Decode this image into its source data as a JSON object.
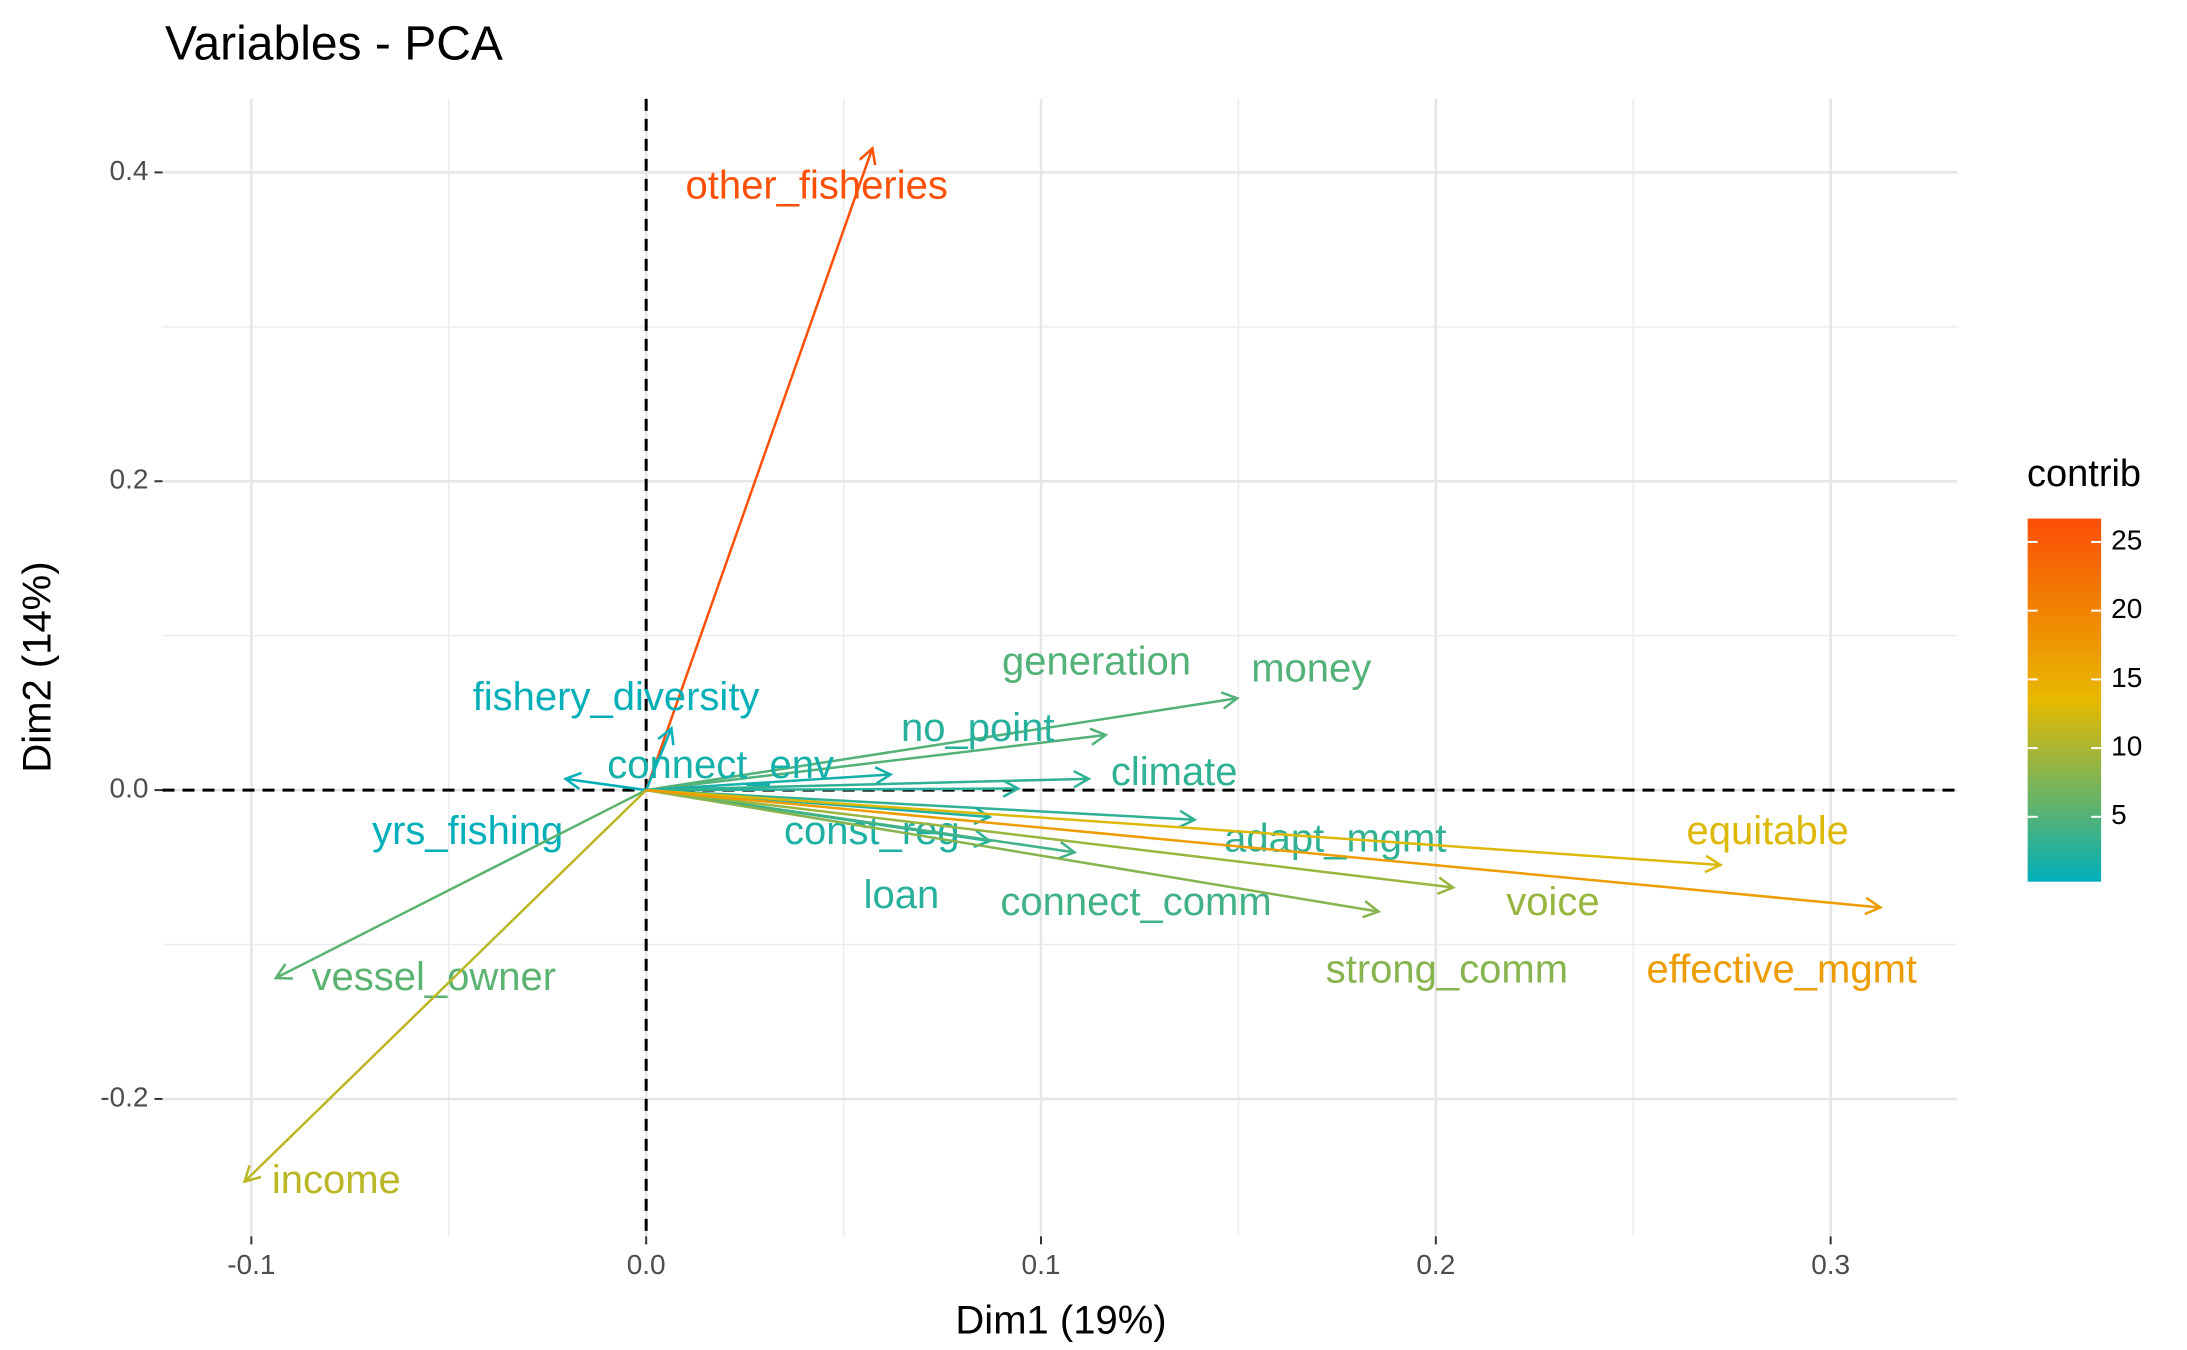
{
  "chart_data": {
    "type": "pca_biplot",
    "title": "Variables - PCA",
    "x_label": "Dim1 (19%)",
    "y_label": "Dim2 (14%)",
    "xlim": [
      -0.1225,
      0.332
    ],
    "ylim": [
      -0.289,
      0.4476
    ],
    "xticks": [
      -0.1,
      {
        "value": 0,
        "label": "0.0"
      },
      0.1,
      0.2,
      0.3
    ],
    "yticks": [
      -0.2,
      {
        "value": 0,
        "label": "0.0"
      },
      0.2,
      0.4
    ],
    "grid": true,
    "labels": [
      "other_fisheries",
      "money",
      "generation",
      "no_point",
      "connect_env",
      "climate",
      "yrs_fishing",
      "fishery_diversity",
      "adapt_mgmt",
      "const_reg",
      "loan",
      "connect_comm",
      "strong_comm",
      "voice",
      "equitable",
      "effective_mgmt",
      "vessel_owner",
      "income"
    ],
    "x": [
      0.0573,
      0.1497,
      0.1164,
      0.0942,
      0.0619,
      0.1121,
      -0.0204,
      0.0064,
      0.1389,
      0.087,
      0.087,
      0.1085,
      0.1855,
      0.2044,
      0.2721,
      0.3126,
      -0.0938,
      -0.1017
    ],
    "y": [
      0.4156,
      0.0595,
      0.0357,
      0.001,
      0.0101,
      0.0073,
      0.0073,
      0.04,
      -0.0192,
      -0.0174,
      -0.033,
      -0.0403,
      -0.0787,
      -0.0631,
      -0.0485,
      -0.076,
      -0.1217,
      -0.2535
    ],
    "contrib": [
      26.5,
      5,
      5,
      2.5,
      1.5,
      3,
      0.4,
      0.5,
      3,
      2,
      2.5,
      4,
      8,
      9,
      13,
      17,
      5.5,
      11
    ],
    "legend_title": "contrib",
    "color_lim": [
      0.28,
      26.7
    ],
    "color_ticks": [
      5,
      10,
      15,
      20,
      25
    ],
    "colors": [
      "#00AFBB",
      "#E7B800",
      "#FC4E07"
    ]
  }
}
